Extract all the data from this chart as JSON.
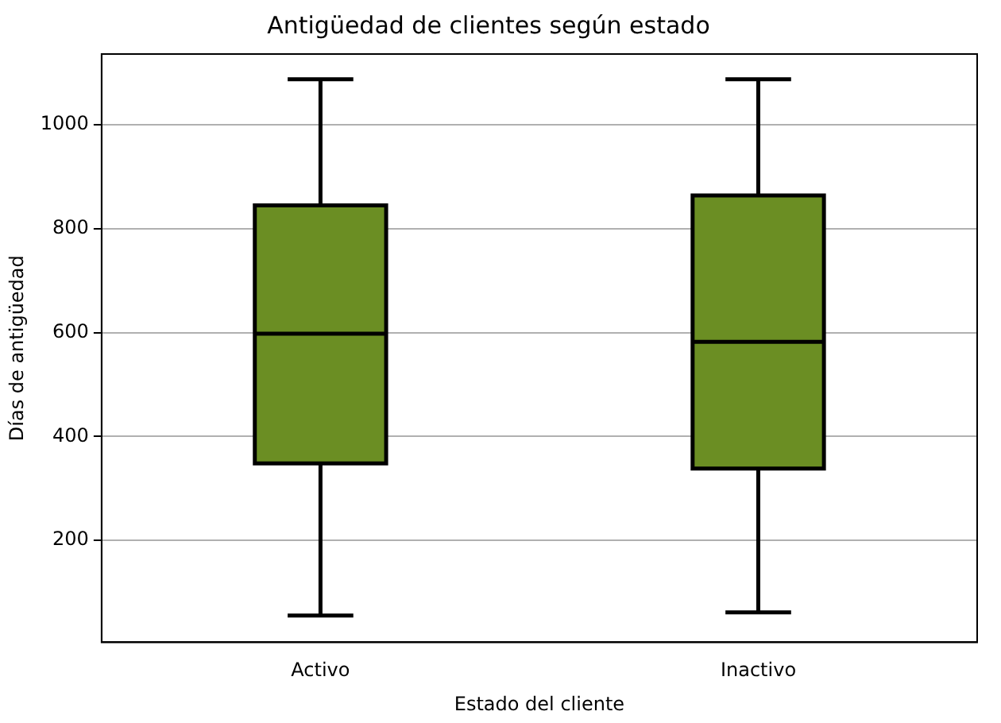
{
  "chart_data": {
    "type": "box",
    "title": "Antigüedad de clientes según estado",
    "xlabel": "Estado del cliente",
    "ylabel": "Días de antigüedad",
    "categories": [
      "Activo",
      "Inactivo"
    ],
    "boxes": [
      {
        "low": 55,
        "q1": 348,
        "median": 598,
        "q3": 845,
        "high": 1088
      },
      {
        "low": 61,
        "q1": 338,
        "median": 582,
        "q3": 864,
        "high": 1088
      }
    ],
    "color": "#6b8e23",
    "ylim": [
      3.5,
      1136.5
    ],
    "yticks": [
      200,
      400,
      600,
      800,
      1000
    ],
    "grid": "y",
    "legend": false
  }
}
